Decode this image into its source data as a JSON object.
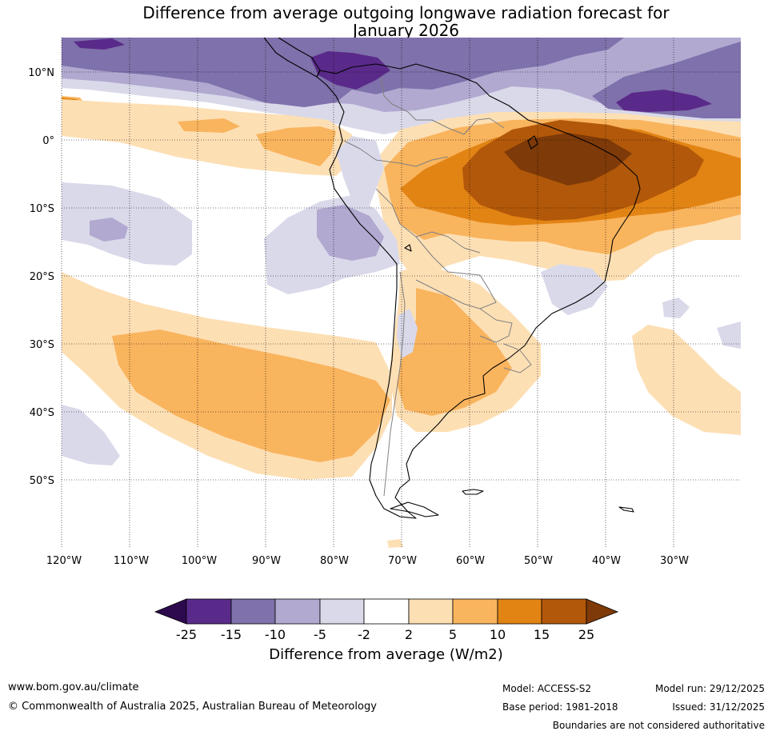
{
  "title_line1": "Difference from average outgoing longwave radiation forecast for",
  "title_line2": "January 2026",
  "latitude_labels": [
    "10°N",
    "0°",
    "10°S",
    "20°S",
    "30°S",
    "40°S",
    "50°S"
  ],
  "longitude_labels": [
    "120°W",
    "110°W",
    "100°W",
    "90°W",
    "80°W",
    "70°W",
    "60°W",
    "50°W",
    "40°W",
    "30°W"
  ],
  "colorbar": {
    "ticks": [
      "-25",
      "-15",
      "-10",
      "-5",
      "-2",
      "2",
      "5",
      "10",
      "15",
      "25"
    ],
    "colors": {
      "below_-25": "#2d0a4e",
      "-25_-15": "#5a2a8a",
      "-15_-10": "#7f71ab",
      "-10_-5": "#b1a9d0",
      "-5_-2": "#d9d9ea",
      "-2_2": "#ffffff",
      "2_5": "#fddfb4",
      "5_10": "#f9b45e",
      "10_15": "#e28414",
      "15_25": "#b2580a",
      "above_25": "#7e3a08"
    },
    "title": "Difference from average (W/m2)"
  },
  "footer": {
    "website": "www.bom.gov.au/climate",
    "copyright": "© Commonwealth of Australia 2025, Australian Bureau of Meteorology",
    "model": "Model: ACCESS-S2",
    "base_period": "Base period: 1981-2018",
    "model_run": "Model run: 29/12/2025",
    "issued": "Issued: 31/12/2025",
    "disclaimer": "Boundaries are not considered authoritative"
  }
}
